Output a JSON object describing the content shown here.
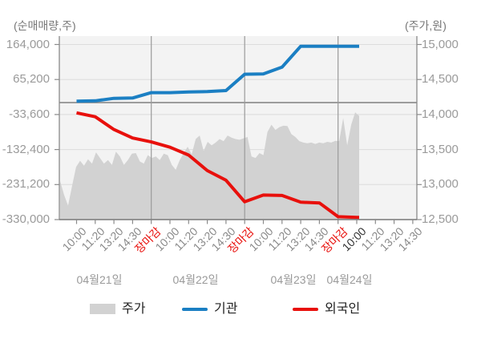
{
  "chart_data": {
    "type": "area",
    "title": "",
    "left_axis": {
      "label": "(순매매량,주)",
      "ticks": [
        "164,000",
        "65,200",
        "-33,600",
        "-132,400",
        "-231,200",
        "-330,000"
      ],
      "tick_values": [
        164000,
        65200,
        -33600,
        -132400,
        -231200,
        -330000
      ],
      "range": [
        -330000,
        164000
      ]
    },
    "right_axis": {
      "label": "(주가,원)",
      "ticks": [
        "15,000",
        "14,500",
        "14,000",
        "13,500",
        "13,000",
        "12,500"
      ],
      "tick_values": [
        15000,
        14500,
        14000,
        13500,
        13000,
        12500
      ],
      "range": [
        12500,
        15000
      ]
    },
    "x_axis": {
      "days": [
        {
          "date": "04월21일",
          "times": [
            "10:00",
            "11:20",
            "13:20",
            "14:30",
            "장마감"
          ]
        },
        {
          "date": "04월22일",
          "times": [
            "10:00",
            "11:20",
            "13:20",
            "14:30",
            "장마감"
          ]
        },
        {
          "date": "04월23일",
          "times": [
            "10:00",
            "11:20",
            "13:20",
            "14:30",
            "장마감"
          ]
        },
        {
          "date": "04월24일",
          "times": [
            "10:00",
            "11:20",
            "13:20",
            "14:30"
          ],
          "current_time": "10:00"
        }
      ],
      "close_label": "장마감",
      "tick_count": 19
    },
    "series": [
      {
        "name": "주가",
        "type": "area",
        "axis": "right",
        "color": "#d2d2d2",
        "values": [
          13050,
          12850,
          12700,
          12980,
          13250,
          13340,
          13270,
          13360,
          13300,
          13460,
          13380,
          13300,
          13350,
          13280,
          13470,
          13400,
          13280,
          13350,
          13440,
          13450,
          13330,
          13300,
          13420,
          13380,
          13400,
          13350,
          13440,
          13420,
          13280,
          13210,
          13350,
          13450,
          13540,
          13430,
          13650,
          13700,
          13480,
          13610,
          13560,
          13600,
          13650,
          13620,
          13700,
          13670,
          13650,
          13640,
          13660,
          13680,
          13400,
          13380,
          13450,
          13420,
          13750,
          13855,
          13780,
          13820,
          13840,
          13835,
          13720,
          13680,
          13620,
          13600,
          13590,
          13600,
          13580,
          13600,
          13590,
          13610,
          13600,
          13625,
          13620,
          13950,
          13560,
          13855,
          14030,
          13980
        ]
      },
      {
        "name": "기관",
        "type": "line",
        "axis": "left",
        "color": "#1b7fc3",
        "values_at_ticks": [
          4000,
          5000,
          12000,
          13000,
          28000,
          28000,
          30000,
          31000,
          34000,
          80000,
          81000,
          100000,
          159000,
          159000,
          159000,
          159000
        ]
      },
      {
        "name": "외국인",
        "type": "line",
        "axis": "left",
        "color": "#e8100c",
        "values_at_ticks": [
          -29000,
          -40000,
          -76000,
          -100000,
          -111000,
          -126000,
          -148000,
          -192000,
          -219000,
          -280000,
          -261000,
          -262000,
          -281000,
          -283000,
          -322000,
          -324000
        ]
      }
    ],
    "grid": true,
    "zero_line_axis": "left",
    "legend_position": "bottom"
  },
  "legend": {
    "items": [
      {
        "label": "주가",
        "swatch": "area",
        "color": "#d2d2d2"
      },
      {
        "label": "기관",
        "swatch": "line",
        "color": "#1b7fc3"
      },
      {
        "label": "외국인",
        "swatch": "line",
        "color": "#e8100c"
      }
    ]
  },
  "colors": {
    "plot_background": "#f3f3f3",
    "gridline": "#dcdcdc",
    "zero_line": "#808080",
    "day_divider": "#9a9a9a",
    "axis_line": "#8a8a8a",
    "area_fill": "#d2d2d2",
    "institutions_line": "#1b7fc3",
    "foreigners_line": "#e8100c",
    "tick_text": "#9a9a9a",
    "close_label_text": "#e8100c",
    "current_time_text": "#333333"
  }
}
